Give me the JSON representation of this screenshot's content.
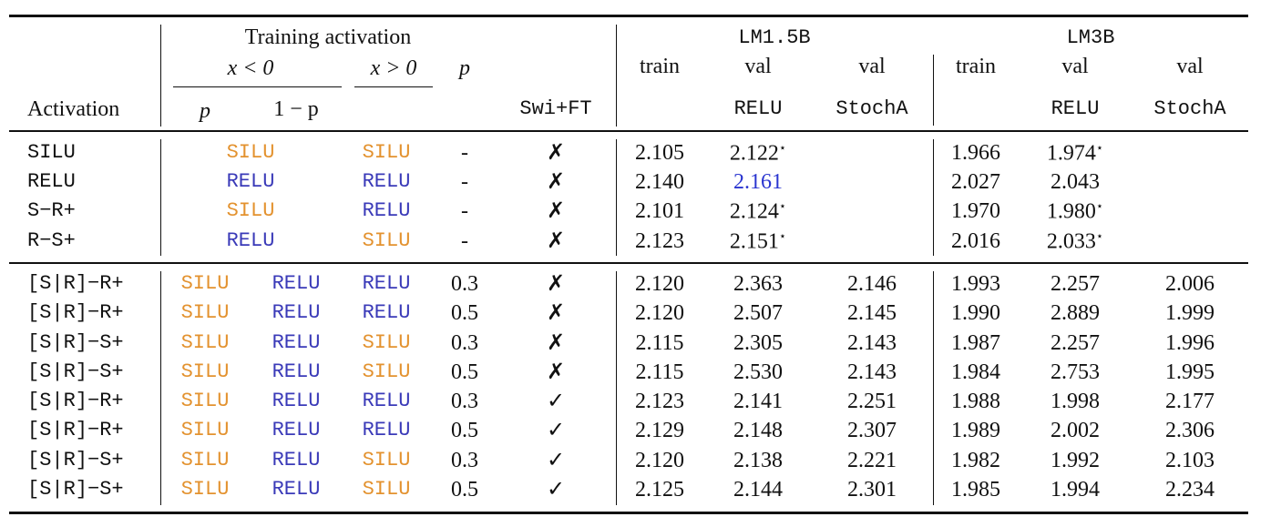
{
  "header": {
    "activation": "Activation",
    "training_activation": "Training activation",
    "x_neg": "x < 0",
    "x_pos": "x > 0",
    "p": "p",
    "neg_p": "p",
    "neg_1mp": "1 − p",
    "swi_ft": "Swi+FT",
    "groups": [
      {
        "name": "LM1.5B",
        "train": "train",
        "val_relu": "val",
        "relu": "RELU",
        "val_stocha": "val",
        "stocha": "StochA"
      },
      {
        "name": "LM3B",
        "train": "train",
        "val_relu": "val",
        "relu": "RELU",
        "val_stocha": "val",
        "stocha": "StochA"
      }
    ]
  },
  "activation_colors": {
    "SILU": "#e3922f",
    "RELU": "#3a3ab8"
  },
  "blocks": [
    [
      {
        "name": "SILU",
        "neg": "SILU",
        "pos": "SILU",
        "p": "-",
        "ft": "✗",
        "values": [
          "2.105",
          {
            "value": "2.122",
            "mark": "⋆"
          },
          null,
          "1.966",
          {
            "value": "1.974",
            "mark": "⋆"
          },
          null
        ]
      },
      {
        "name": "RELU",
        "neg": "RELU",
        "pos": "RELU",
        "p": "-",
        "ft": "✗",
        "values": [
          "2.140",
          {
            "value": "2.161",
            "color": "#2a35d0"
          },
          null,
          "2.027",
          "2.043",
          null
        ]
      },
      {
        "name": "S−R+",
        "neg": "SILU",
        "pos": "RELU",
        "p": "-",
        "ft": "✗",
        "values": [
          "2.101",
          {
            "value": "2.124",
            "mark": "⋆"
          },
          null,
          "1.970",
          {
            "value": "1.980",
            "mark": "⋆"
          },
          null
        ]
      },
      {
        "name": "R−S+",
        "neg": "RELU",
        "pos": "SILU",
        "p": "-",
        "ft": "✗",
        "values": [
          "2.123",
          {
            "value": "2.151",
            "mark": "⋆"
          },
          null,
          "2.016",
          {
            "value": "2.033",
            "mark": "⋆"
          },
          null
        ]
      }
    ],
    [
      {
        "name": "[S|R]−R+",
        "neg_p": "SILU",
        "neg_1mp": "RELU",
        "pos": "RELU",
        "p": "0.3",
        "ft": "✗",
        "values": [
          "2.120",
          "2.363",
          "2.146",
          "1.993",
          "2.257",
          "2.006"
        ]
      },
      {
        "name": "[S|R]−R+",
        "neg_p": "SILU",
        "neg_1mp": "RELU",
        "pos": "RELU",
        "p": "0.5",
        "ft": "✗",
        "values": [
          "2.120",
          "2.507",
          "2.145",
          "1.990",
          "2.889",
          "1.999"
        ]
      },
      {
        "name": "[S|R]−S+",
        "neg_p": "SILU",
        "neg_1mp": "RELU",
        "pos": "SILU",
        "p": "0.3",
        "ft": "✗",
        "values": [
          "2.115",
          "2.305",
          "2.143",
          "1.987",
          "2.257",
          "1.996"
        ]
      },
      {
        "name": "[S|R]−S+",
        "neg_p": "SILU",
        "neg_1mp": "RELU",
        "pos": "SILU",
        "p": "0.5",
        "ft": "✗",
        "values": [
          "2.115",
          "2.530",
          "2.143",
          "1.984",
          "2.753",
          "1.995"
        ]
      },
      {
        "name": "[S|R]−R+",
        "neg_p": "SILU",
        "neg_1mp": "RELU",
        "pos": "RELU",
        "p": "0.3",
        "ft": "✓",
        "values": [
          "2.123",
          "2.141",
          "2.251",
          "1.988",
          "1.998",
          "2.177"
        ]
      },
      {
        "name": "[S|R]−R+",
        "neg_p": "SILU",
        "neg_1mp": "RELU",
        "pos": "RELU",
        "p": "0.5",
        "ft": "✓",
        "values": [
          "2.129",
          "2.148",
          "2.307",
          "1.989",
          "2.002",
          "2.306"
        ]
      },
      {
        "name": "[S|R]−S+",
        "neg_p": "SILU",
        "neg_1mp": "RELU",
        "pos": "SILU",
        "p": "0.3",
        "ft": "✓",
        "values": [
          "2.120",
          "2.138",
          "2.221",
          "1.982",
          "1.992",
          "2.103"
        ]
      },
      {
        "name": "[S|R]−S+",
        "neg_p": "SILU",
        "neg_1mp": "RELU",
        "pos": "SILU",
        "p": "0.5",
        "ft": "✓",
        "values": [
          "2.125",
          "2.144",
          "2.301",
          "1.985",
          "1.994",
          "2.234"
        ]
      }
    ]
  ]
}
